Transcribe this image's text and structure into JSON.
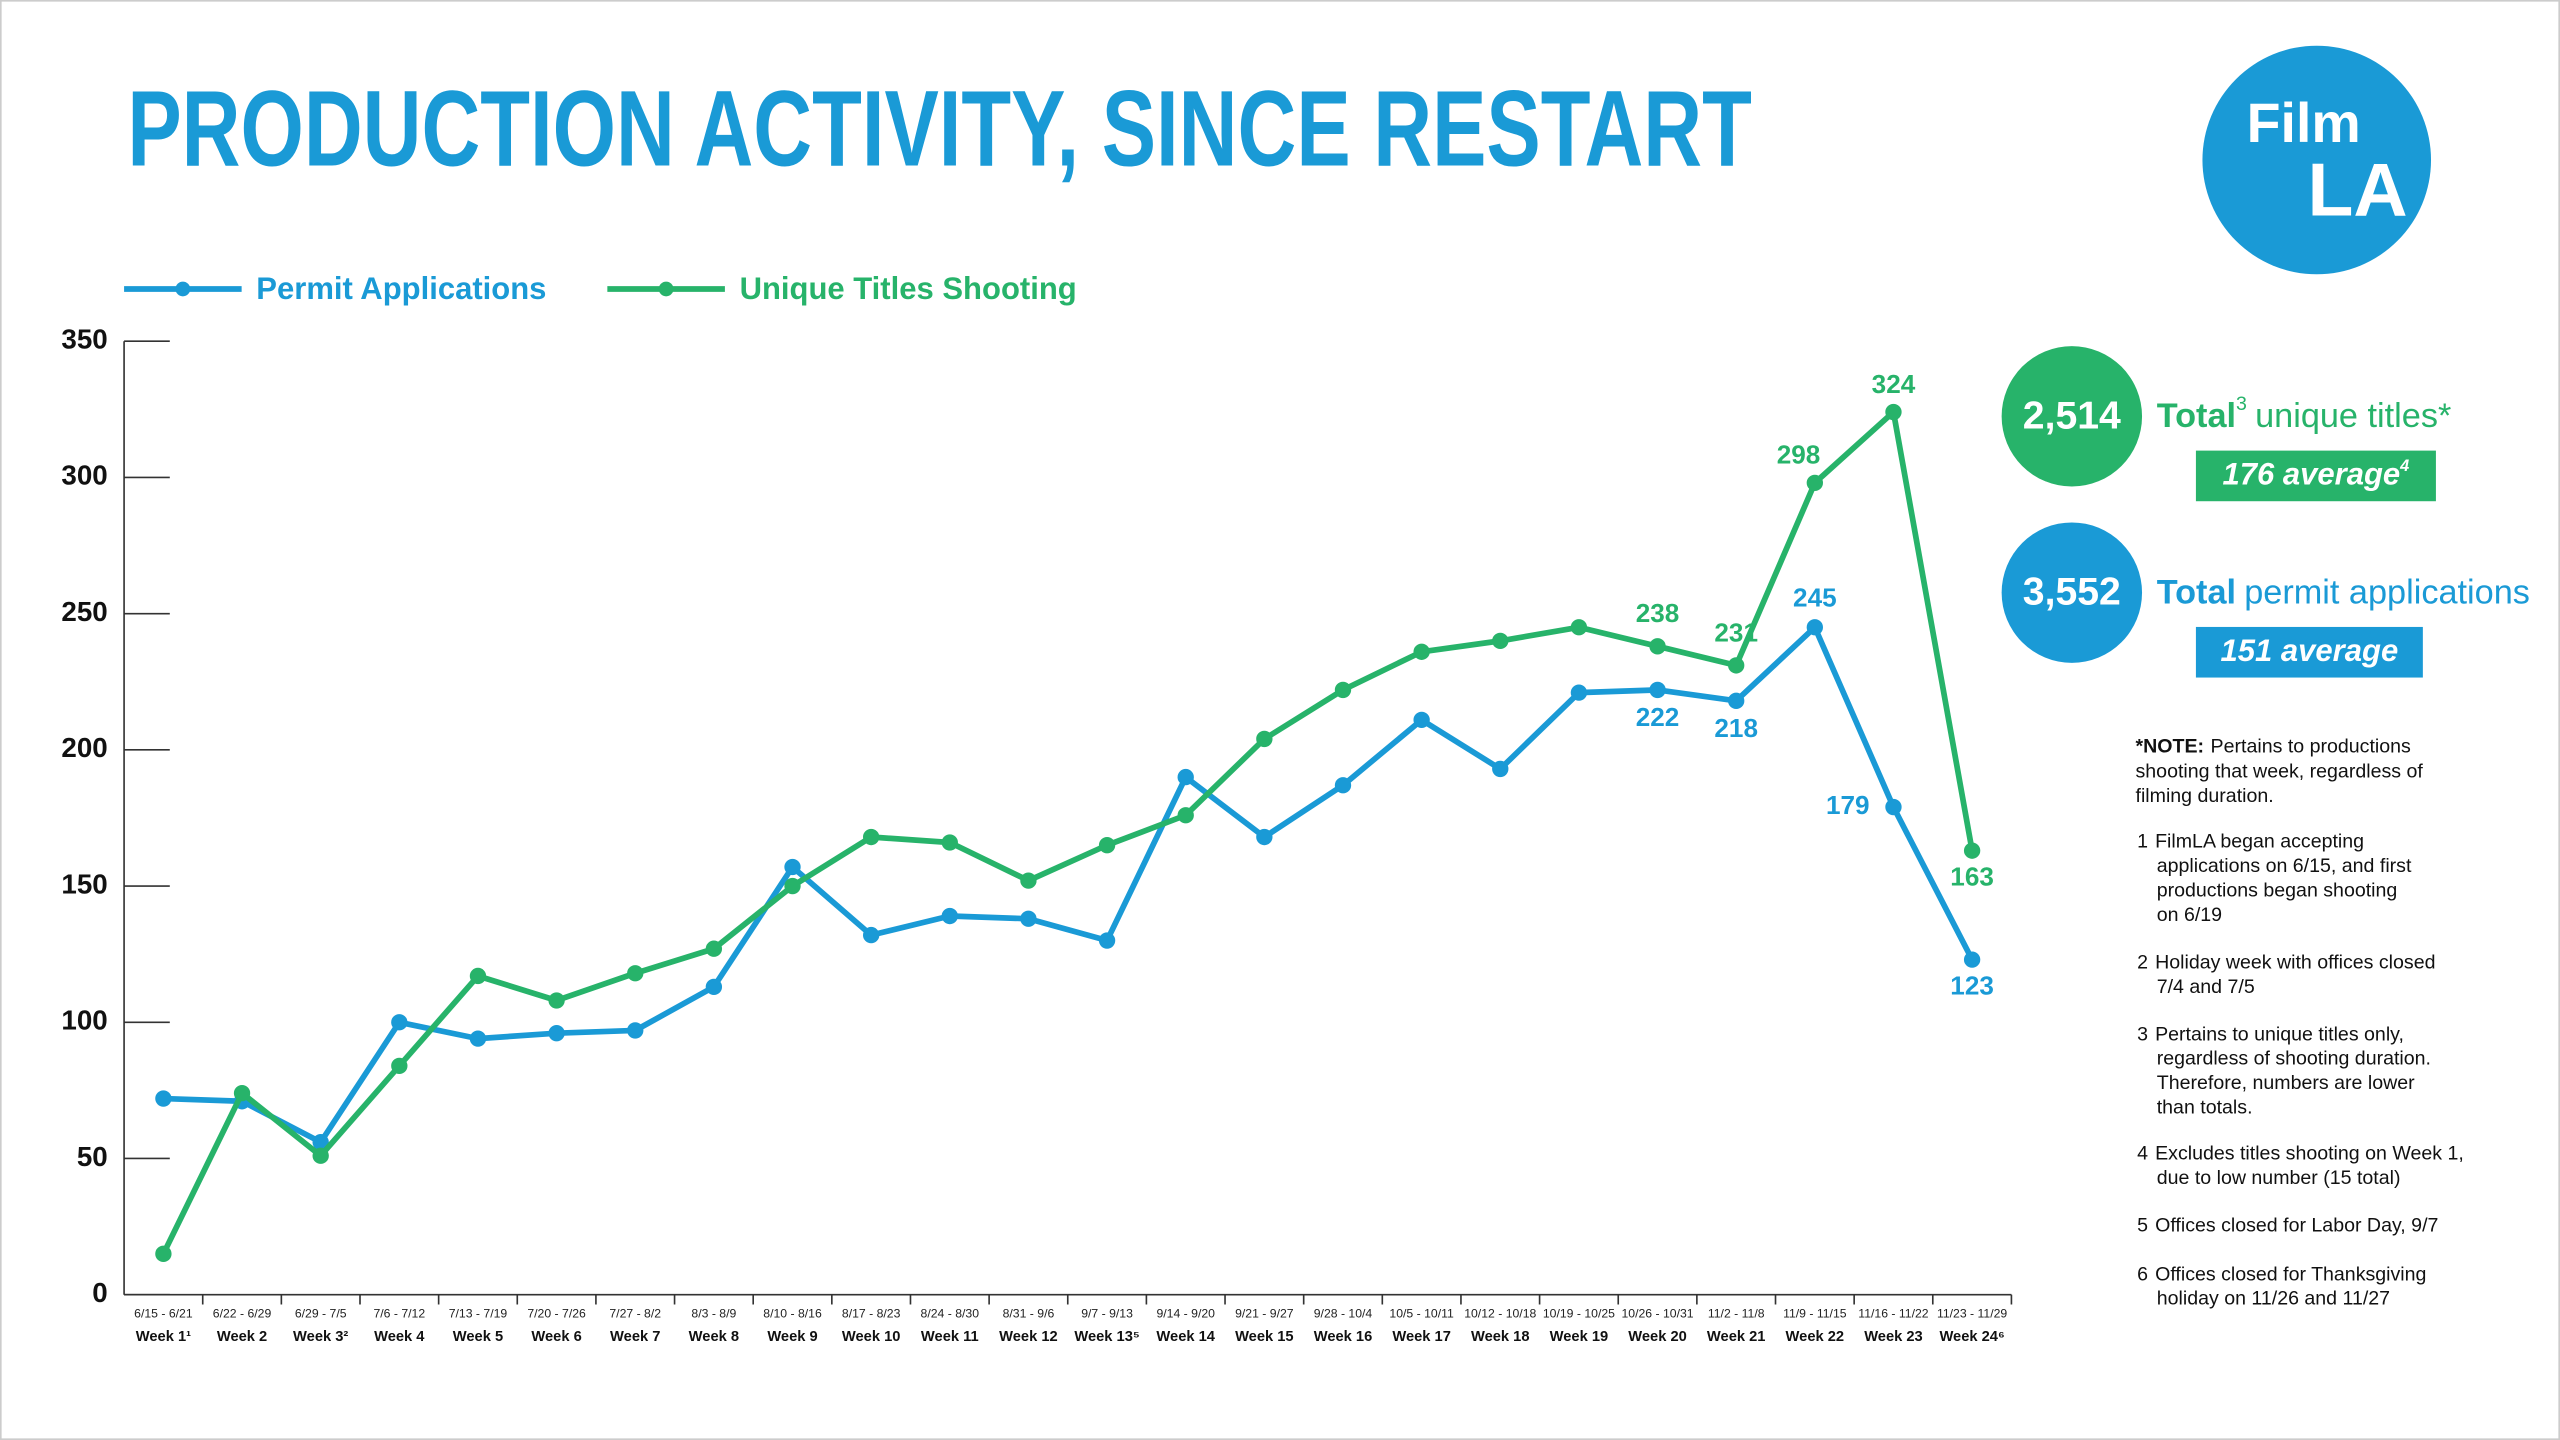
{
  "chart_data": {
    "type": "line",
    "title": "PRODUCTION ACTIVITY, SINCE RESTART",
    "logo": {
      "line1": "Film",
      "line2": "LA"
    },
    "categories": [
      "Week 1¹",
      "Week 2",
      "Week 3²",
      "Week 4",
      "Week 5",
      "Week 6",
      "Week 7",
      "Week 8",
      "Week 9",
      "Week 10",
      "Week 11",
      "Week 12",
      "Week 13⁵",
      "Week 14",
      "Week 15",
      "Week 16",
      "Week 17",
      "Week 18",
      "Week 19",
      "Week 20",
      "Week 21",
      "Week 22",
      "Week 23",
      "Week 24⁶"
    ],
    "date_ranges": [
      "6/15 - 6/21",
      "6/22 - 6/29",
      "6/29 - 7/5",
      "7/6 - 7/12",
      "7/13 - 7/19",
      "7/20 - 7/26",
      "7/27 - 8/2",
      "8/3 - 8/9",
      "8/10 - 8/16",
      "8/17 - 8/23",
      "8/24 - 8/30",
      "8/31 - 9/6",
      "9/7 - 9/13",
      "9/14 - 9/20",
      "9/21 - 9/27",
      "9/28 - 10/4",
      "10/5 - 10/11",
      "10/12 - 10/18",
      "10/19 - 10/25",
      "10/26 - 10/31",
      "11/2 - 11/8",
      "11/9 - 11/15",
      "11/16 - 11/22",
      "11/23 - 11/29"
    ],
    "series": [
      {
        "name": "Permit Applications",
        "color": "#1a9ad6",
        "values": [
          72,
          71,
          56,
          100,
          94,
          96,
          97,
          113,
          157,
          132,
          139,
          138,
          130,
          190,
          168,
          187,
          211,
          193,
          221,
          222,
          218,
          245,
          179,
          123
        ]
      },
      {
        "name": "Unique Titles Shooting",
        "color": "#27b36a",
        "values": [
          15,
          74,
          51,
          84,
          117,
          108,
          118,
          127,
          150,
          168,
          166,
          152,
          165,
          176,
          204,
          222,
          236,
          240,
          245,
          238,
          231,
          298,
          324,
          163
        ]
      }
    ],
    "ylim": [
      0,
      350
    ],
    "yticks": [
      0,
      50,
      100,
      150,
      200,
      250,
      300,
      350
    ],
    "stats": [
      {
        "value": "2,514",
        "label": "Total",
        "sup": "3",
        "text": "unique titles*",
        "average": "176 average",
        "average_sup": "4",
        "color": "#27b36a"
      },
      {
        "value": "3,552",
        "label": "Total",
        "text": "permit applications",
        "average": "151 average",
        "color": "#1a9ad6"
      }
    ],
    "note": {
      "label": "*NOTE:",
      "lines": [
        "Pertains to productions",
        "shooting that week, regardless of",
        "filming duration."
      ]
    },
    "footnotes": [
      {
        "number": "1",
        "lines": [
          "FilmLA began accepting",
          "applications on 6/15, and first",
          "productions began shooting",
          "on 6/19"
        ]
      },
      {
        "number": "2",
        "lines": [
          "Holiday week with offices closed",
          "7/4 and 7/5"
        ]
      },
      {
        "number": "3",
        "lines": [
          "Pertains to unique titles only,",
          "regardless of shooting duration.",
          "Therefore, numbers are lower",
          "than totals."
        ]
      },
      {
        "number": "4",
        "lines": [
          "Excludes titles shooting on Week 1,",
          "due to low number (15 total)"
        ]
      },
      {
        "number": "5",
        "lines": [
          "Offices closed for Labor Day, 9/7"
        ]
      },
      {
        "number": "6",
        "lines": [
          "Offices closed for Thanksgiving",
          "holiday on 11/26 and 11/27"
        ]
      }
    ]
  }
}
